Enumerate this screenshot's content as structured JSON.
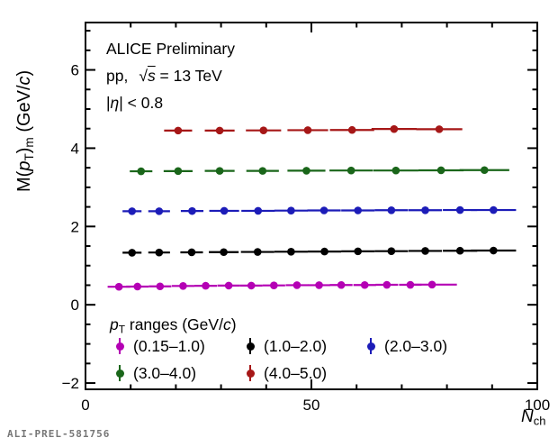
{
  "watermark": "ALI-PREL-581756",
  "annotations": {
    "line1": "ALICE Preliminary",
    "line2": {
      "prefix": "pp,",
      "sqrt_symbol": "√",
      "sqrt_arg": "s",
      "suffix": " = 13 TeV"
    },
    "line3": {
      "open": "|",
      "eta": "η",
      "rest": "| < 0.8"
    }
  },
  "display": {
    "y_label": {
      "m_open": "M(",
      "p": "p",
      "sub_T": "T",
      "close": ")",
      "sub_m": "m",
      "unit_open": " (GeV/",
      "c": "c",
      "unit_close": ")"
    },
    "x_label": {
      "symbol": "N",
      "subscript": "ch"
    },
    "legend_title": {
      "p": "p",
      "sub_T": "T",
      "rest": " ranges (GeV/",
      "c": "c",
      "close": ")"
    }
  },
  "chart_data": {
    "type": "scatter",
    "title": "",
    "xlabel": "N_ch",
    "ylabel": "M(p_T)_m (GeV/c)",
    "xlim": [
      0,
      100
    ],
    "ylim": [
      -2.16,
      7.21
    ],
    "x_major_ticks": [
      0,
      50,
      100
    ],
    "x_minor_step": 10,
    "y_major_ticks": [
      -2,
      0,
      2,
      4,
      6
    ],
    "y_minor_step": 0.5,
    "grid": false,
    "legend_title": "pT ranges (GeV/c)",
    "legend_position": "bottom-left",
    "annotations": [
      "ALICE Preliminary",
      "pp, sqrt(s) = 13 TeV",
      "|eta| < 0.8"
    ],
    "series": [
      {
        "name": "(0.15–1.0)",
        "color": "#b400b4",
        "x": [
          7.4,
          11.5,
          16.5,
          21.6,
          26.6,
          31.7,
          36.7,
          41.7,
          46.8,
          51.7,
          56.6,
          61.8,
          66.7,
          71.9,
          76.7
        ],
        "y": [
          0.46,
          0.465,
          0.47,
          0.48,
          0.485,
          0.49,
          0.49,
          0.495,
          0.5,
          0.5,
          0.505,
          0.505,
          0.51,
          0.51,
          0.515
        ],
        "xerr": [
          2.5,
          2.5,
          2.5,
          2.5,
          2.5,
          2.5,
          2.5,
          2.5,
          2.5,
          2.5,
          2.5,
          2.5,
          2.5,
          2.5,
          5.5
        ]
      },
      {
        "name": "(1.0–2.0)",
        "color": "#000000",
        "x": [
          10.3,
          16.3,
          23.5,
          30.6,
          38.1,
          45.5,
          52.9,
          60.3,
          67.7,
          75.2,
          82.9,
          90.3
        ],
        "y": [
          1.33,
          1.335,
          1.34,
          1.345,
          1.35,
          1.355,
          1.36,
          1.365,
          1.37,
          1.375,
          1.38,
          1.385
        ],
        "xerr": [
          2.1,
          2.4,
          2.5,
          3.3,
          3.7,
          3.7,
          3.7,
          3.7,
          3.7,
          3.7,
          3.8,
          5.0
        ]
      },
      {
        "name": "(2.0–3.0)",
        "color": "#1c1cb8",
        "x": [
          10.3,
          16.3,
          23.6,
          30.7,
          38.2,
          45.5,
          52.8,
          60.3,
          67.7,
          75.2,
          82.9,
          90.3
        ],
        "y": [
          2.39,
          2.39,
          2.395,
          2.4,
          2.4,
          2.405,
          2.41,
          2.41,
          2.415,
          2.415,
          2.42,
          2.42
        ],
        "xerr": [
          2.1,
          2.4,
          2.5,
          3.3,
          3.7,
          3.7,
          3.7,
          3.7,
          3.7,
          3.7,
          3.8,
          5.0
        ]
      },
      {
        "name": "(3.0–4.0)",
        "color": "#1a661a",
        "x": [
          12.3,
          20.5,
          29.7,
          39.2,
          48.9,
          58.8,
          68.7,
          78.7,
          88.3
        ],
        "y": [
          3.41,
          3.415,
          3.42,
          3.42,
          3.425,
          3.43,
          3.43,
          3.435,
          3.44
        ],
        "xerr": [
          2.5,
          3.2,
          3.3,
          3.6,
          4.2,
          4.8,
          5.0,
          5.0,
          5.5
        ]
      },
      {
        "name": "(4.0–5.0)",
        "color": "#a61717",
        "x": [
          20.5,
          29.7,
          39.4,
          49.2,
          59.0,
          68.3,
          78.3
        ],
        "y": [
          4.45,
          4.45,
          4.455,
          4.46,
          4.465,
          4.49,
          4.485
        ],
        "xerr": [
          3.1,
          3.3,
          3.9,
          4.5,
          4.9,
          5.0,
          5.1
        ]
      }
    ]
  }
}
